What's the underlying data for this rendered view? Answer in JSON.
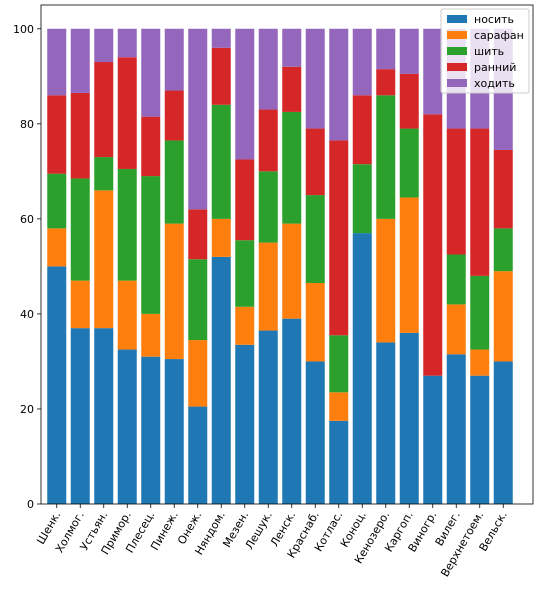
{
  "chart_data": {
    "type": "bar",
    "stacked": true,
    "categories": [
      "Шенк.",
      "Холмог.",
      "Устьян.",
      "Примор.",
      "Плесец.",
      "Пинеж.",
      "Онеж.",
      "Няндом.",
      "Мезен.",
      "Лешук.",
      "Ленск.",
      "Краснаб.",
      "Котлас.",
      "Коноц.",
      "Кенозеро.",
      "Каргоп.",
      "Виногр.",
      "Вилег.",
      "Верхнетоем.",
      "Вельск."
    ],
    "series": [
      {
        "name": "носить",
        "color": "#1f77b4",
        "values": [
          50,
          37,
          37,
          32.5,
          31,
          30.5,
          20.5,
          52,
          33.5,
          36.5,
          39,
          30,
          17.5,
          57,
          34,
          36,
          27,
          31.5,
          27,
          30
        ]
      },
      {
        "name": "сарафан",
        "color": "#ff7f0e",
        "values": [
          8,
          10,
          29,
          14.5,
          9,
          28.5,
          14,
          8,
          8,
          18.5,
          20,
          16.5,
          6,
          0,
          26,
          28.5,
          0,
          10.5,
          5.5,
          19
        ]
      },
      {
        "name": "шить",
        "color": "#2ca02c",
        "values": [
          11.5,
          21.5,
          7,
          23.5,
          29,
          17.5,
          17,
          24,
          14,
          15,
          23.5,
          18.5,
          12,
          14.5,
          26,
          14.5,
          0,
          10.5,
          15.5,
          9
        ]
      },
      {
        "name": "ранний",
        "color": "#d62728",
        "values": [
          16.5,
          18,
          20,
          23.5,
          12.5,
          10.5,
          10.5,
          12,
          17,
          13,
          9.5,
          14,
          41,
          14.5,
          5.5,
          11.5,
          55,
          26.5,
          31,
          16.5
        ]
      },
      {
        "name": "ходить",
        "color": "#9467bd",
        "values": [
          14,
          13.5,
          7,
          6,
          18.5,
          13,
          38,
          4,
          27.5,
          17,
          8,
          21,
          23.5,
          14,
          8.5,
          9.5,
          18,
          21,
          21,
          25.5
        ]
      }
    ],
    "yticks": [
      0,
      20,
      40,
      60,
      80,
      100
    ],
    "ylim": [
      0,
      105
    ],
    "legend_position": "top-right",
    "title": "",
    "xlabel": "",
    "ylabel": ""
  }
}
